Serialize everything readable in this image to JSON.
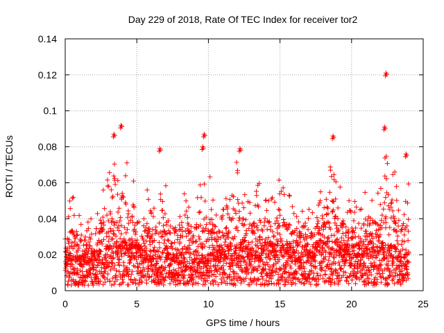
{
  "chart_data": {
    "type": "scatter",
    "title": "Day 229 of 2018, Rate Of TEC Index for receiver tor2",
    "xlabel": "GPS time / hours",
    "ylabel": "ROTI / TECUs",
    "xlim": [
      0,
      25
    ],
    "ylim": [
      0,
      0.14
    ],
    "xticks": [
      0,
      5,
      10,
      15,
      20,
      25
    ],
    "yticks": [
      0,
      0.02,
      0.04,
      0.06,
      0.08,
      0.1,
      0.12,
      0.14
    ],
    "ytick_labels": [
      "0",
      "0.02",
      "0.04",
      "0.06",
      "0.08",
      "0.1",
      "0.12",
      "0.14"
    ],
    "grid": true,
    "marker": "+",
    "series": [
      {
        "name": "ROTI",
        "color": "#ff0000",
        "envelope": {
          "x": [
            0,
            0.5,
            1,
            1.5,
            2,
            2.5,
            3,
            3.5,
            4,
            4.5,
            5,
            5.5,
            6,
            6.5,
            7,
            7.5,
            8,
            8.5,
            9,
            9.5,
            10,
            10.5,
            11,
            11.5,
            12,
            12.5,
            13,
            13.5,
            14,
            14.5,
            15,
            15.5,
            16,
            16.5,
            17,
            17.5,
            18,
            18.5,
            19,
            19.5,
            20,
            20.5,
            21,
            21.5,
            22,
            22.5,
            23,
            23.5,
            24
          ],
          "baseline": [
            0.013,
            0.014,
            0.013,
            0.014,
            0.015,
            0.016,
            0.017,
            0.018,
            0.019,
            0.018,
            0.017,
            0.016,
            0.015,
            0.016,
            0.017,
            0.016,
            0.015,
            0.015,
            0.014,
            0.013,
            0.014,
            0.015,
            0.016,
            0.017,
            0.018,
            0.017,
            0.016,
            0.017,
            0.018,
            0.019,
            0.019,
            0.018,
            0.016,
            0.015,
            0.016,
            0.018,
            0.019,
            0.02,
            0.019,
            0.018,
            0.017,
            0.018,
            0.019,
            0.018,
            0.017,
            0.018,
            0.017,
            0.015,
            0.014
          ],
          "upper": [
            0.046,
            0.058,
            0.042,
            0.044,
            0.047,
            0.06,
            0.065,
            0.072,
            0.085,
            0.066,
            0.057,
            0.06,
            0.054,
            0.062,
            0.06,
            0.054,
            0.05,
            0.057,
            0.052,
            0.07,
            0.068,
            0.05,
            0.046,
            0.058,
            0.074,
            0.058,
            0.053,
            0.06,
            0.057,
            0.06,
            0.063,
            0.055,
            0.049,
            0.047,
            0.046,
            0.052,
            0.062,
            0.074,
            0.066,
            0.057,
            0.054,
            0.058,
            0.063,
            0.058,
            0.057,
            0.088,
            0.068,
            0.057,
            0.062
          ]
        },
        "peaks": [
          {
            "x": 3.4,
            "y": 0.087
          },
          {
            "x": 3.9,
            "y": 0.092
          },
          {
            "x": 6.6,
            "y": 0.079
          },
          {
            "x": 9.7,
            "y": 0.087
          },
          {
            "x": 9.6,
            "y": 0.08
          },
          {
            "x": 12.2,
            "y": 0.079
          },
          {
            "x": 18.7,
            "y": 0.086
          },
          {
            "x": 22.4,
            "y": 0.121
          },
          {
            "x": 22.3,
            "y": 0.091
          },
          {
            "x": 23.8,
            "y": 0.076
          }
        ],
        "n_points": 2880
      }
    ]
  }
}
